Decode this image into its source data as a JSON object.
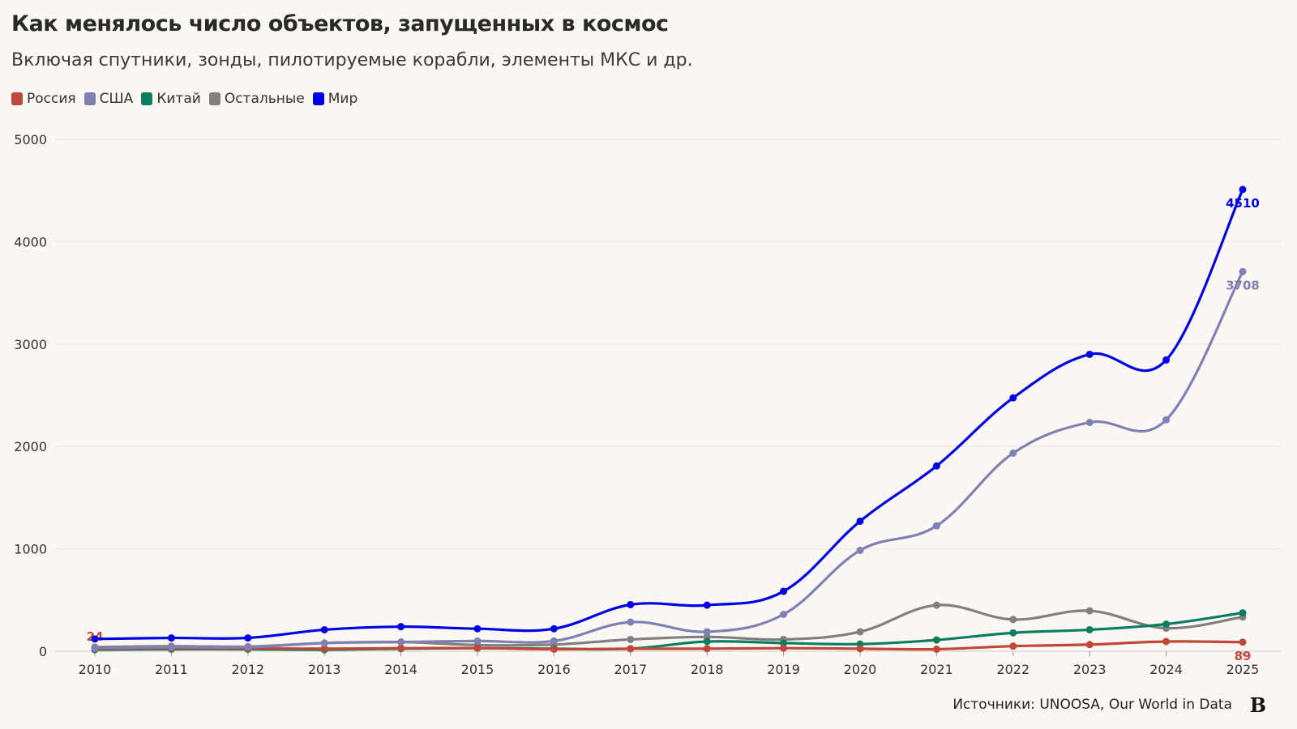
{
  "title": "Как менялось число объектов, запущенных в космос",
  "subtitle": "Включая спутники, зонды, пилотируемые корабли, элементы МКС и др.",
  "source": "Источники: UNOOSA, Our World in Data",
  "logo": "B",
  "chart_data": {
    "type": "line",
    "title": "Как менялось число объектов, запущенных в космос",
    "subtitle": "Включая спутники, зонды, пилотируемые корабли, элементы МКС и др.",
    "x": [
      2010,
      2011,
      2012,
      2013,
      2014,
      2015,
      2016,
      2017,
      2018,
      2019,
      2020,
      2021,
      2022,
      2023,
      2024,
      2025
    ],
    "ylim": [
      0,
      5000
    ],
    "yticks": [
      0,
      1000,
      2000,
      3000,
      4000,
      5000
    ],
    "grid": true,
    "legend_position": "top-left",
    "series": [
      {
        "name": "Россия",
        "color": "#c0483a",
        "values": [
          24,
          30,
          28,
          25,
          30,
          30,
          20,
          25,
          25,
          30,
          25,
          20,
          50,
          65,
          95,
          89
        ],
        "labels": {
          "first": "24",
          "last": "89"
        }
      },
      {
        "name": "США",
        "color": "#7f80b4",
        "values": [
          30,
          40,
          40,
          80,
          90,
          100,
          100,
          285,
          190,
          360,
          985,
          1225,
          1935,
          2235,
          2260,
          3708
        ],
        "labels": {
          "last": "3708"
        }
      },
      {
        "name": "Китай",
        "color": "#0d7d61",
        "values": [
          15,
          20,
          20,
          15,
          25,
          30,
          25,
          25,
          95,
          80,
          70,
          110,
          180,
          210,
          265,
          375
        ]
      },
      {
        "name": "Остальные",
        "color": "#808080",
        "values": [
          40,
          50,
          45,
          80,
          90,
          60,
          65,
          115,
          140,
          115,
          190,
          450,
          310,
          395,
          225,
          335
        ]
      },
      {
        "name": "Мир",
        "color": "#0000e6",
        "values": [
          120,
          130,
          130,
          210,
          240,
          220,
          220,
          455,
          450,
          585,
          1270,
          1810,
          2475,
          2900,
          2845,
          4510
        ],
        "labels": {
          "last": "4510"
        }
      }
    ]
  }
}
